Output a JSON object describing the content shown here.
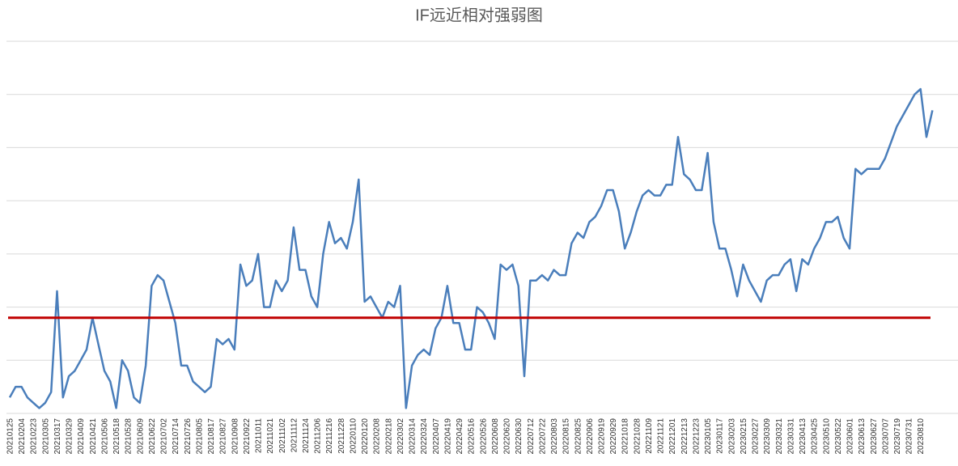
{
  "chart_data": {
    "type": "line",
    "title": "IF远近相对强弱图",
    "categories": [
      "20210125",
      null,
      "20210204",
      null,
      "20210223",
      null,
      "20210305",
      null,
      "20210317",
      null,
      "20210329",
      null,
      "20210409",
      null,
      "20210421",
      null,
      "20210506",
      null,
      "20210518",
      null,
      "20210528",
      null,
      "20210609",
      null,
      "20210622",
      null,
      "20210702",
      null,
      "20210714",
      null,
      "20210726",
      null,
      "20210805",
      null,
      "20210817",
      null,
      "20210827",
      null,
      "20210908",
      null,
      "20210922",
      null,
      "20211011",
      null,
      "20211021",
      null,
      "20211102",
      null,
      "20211112",
      null,
      "20211124",
      null,
      "20211206",
      null,
      "20211216",
      null,
      "20211228",
      null,
      "20220110",
      null,
      "20220120",
      null,
      "20220208",
      null,
      "20220218",
      null,
      "20220302",
      null,
      "20220314",
      null,
      "20220324",
      null,
      "20220407",
      null,
      "20220419",
      null,
      "20220429",
      null,
      "20220516",
      null,
      "20220526",
      null,
      "20220608",
      null,
      "20220620",
      null,
      "20220630",
      null,
      "20220712",
      null,
      "20220722",
      null,
      "20220803",
      null,
      "20220815",
      null,
      "20220825",
      null,
      "20220906",
      null,
      "20220919",
      null,
      "20220929",
      null,
      "20221018",
      null,
      "20221028",
      null,
      "20221109",
      null,
      "20221121",
      null,
      "20221201",
      null,
      "20221213",
      null,
      "20221223",
      null,
      "20230105",
      null,
      "20230117",
      null,
      "20230203",
      null,
      "20230215",
      null,
      "20230227",
      null,
      "20230309",
      null,
      "20230321",
      null,
      "20230331",
      null,
      "20230413",
      null,
      "20230425",
      null,
      "20230510",
      null,
      "20230522",
      null,
      "20230601",
      null,
      "20230613",
      null,
      "20230627",
      null,
      "20230707",
      null,
      "20230719",
      null,
      "20230731",
      null,
      "20230810",
      null,
      null
    ],
    "series": [
      {
        "color": "#4a7ebb",
        "values": [
          0.3,
          0.5,
          0.5,
          0.3,
          0.2,
          0.1,
          0.2,
          0.4,
          2.3,
          0.3,
          0.7,
          0.8,
          1.0,
          1.2,
          1.8,
          1.3,
          0.8,
          0.6,
          0.1,
          1.0,
          0.8,
          0.3,
          0.2,
          0.9,
          2.4,
          2.6,
          2.5,
          2.1,
          1.7,
          0.9,
          0.9,
          0.6,
          0.5,
          0.4,
          0.5,
          1.4,
          1.3,
          1.4,
          1.2,
          2.8,
          2.4,
          2.5,
          3.0,
          2.0,
          2.0,
          2.5,
          2.3,
          2.5,
          3.5,
          2.7,
          2.7,
          2.2,
          2.0,
          3.0,
          3.6,
          3.2,
          3.3,
          3.1,
          3.6,
          4.4,
          2.1,
          2.2,
          2.0,
          1.8,
          2.1,
          2.0,
          2.4,
          0.1,
          0.9,
          1.1,
          1.2,
          1.1,
          1.6,
          1.8,
          2.4,
          1.7,
          1.7,
          1.2,
          1.2,
          2.0,
          1.9,
          1.7,
          1.4,
          2.8,
          2.7,
          2.8,
          2.4,
          0.7,
          2.5,
          2.5,
          2.6,
          2.5,
          2.7,
          2.6,
          2.6,
          3.2,
          3.4,
          3.3,
          3.6,
          3.7,
          3.9,
          4.2,
          4.2,
          3.8,
          3.1,
          3.4,
          3.8,
          4.1,
          4.2,
          4.1,
          4.1,
          4.3,
          4.3,
          5.2,
          4.5,
          4.4,
          4.2,
          4.2,
          4.9,
          3.6,
          3.1,
          3.1,
          2.7,
          2.2,
          2.8,
          2.5,
          2.3,
          2.1,
          2.5,
          2.6,
          2.6,
          2.8,
          2.9,
          2.3,
          2.9,
          2.8,
          3.1,
          3.3,
          3.6,
          3.6,
          3.7,
          3.3,
          3.1,
          4.6,
          4.5,
          4.6,
          4.6,
          4.6,
          4.8,
          5.1,
          5.4,
          5.6,
          5.8,
          6.0,
          6.1,
          5.2,
          5.7
        ]
      }
    ],
    "reference_line": {
      "value": 1.8,
      "color": "#c00000"
    },
    "ylim": [
      0,
      7
    ],
    "ygrid": [
      0,
      1,
      2,
      3,
      4,
      5,
      6,
      7
    ],
    "grid": true
  }
}
